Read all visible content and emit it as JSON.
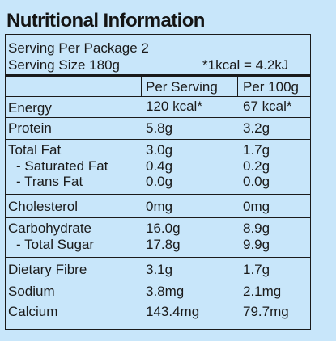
{
  "title": "Nutritional Information",
  "serving_per_package": "Serving Per Package 2",
  "serving_size": "Serving Size 180g",
  "energy_conversion": "*1kcal = 4.2kJ",
  "columns": {
    "per_serving": "Per Serving",
    "per_100g": "Per 100g"
  },
  "rows": [
    {
      "label": "Energy",
      "per_serving": "120 kcal*",
      "per_100g": "67 kcal*"
    },
    {
      "label": "Protein",
      "per_serving": "5.8g",
      "per_100g": "3.2g"
    },
    {
      "label": "Total Fat",
      "per_serving": "3.0g",
      "per_100g": "1.7g"
    },
    {
      "label": "- Saturated Fat",
      "per_serving": "0.4g",
      "per_100g": "0.2g"
    },
    {
      "label": "- Trans Fat",
      "per_serving": "0.0g",
      "per_100g": "0.0g"
    },
    {
      "label": "Cholesterol",
      "per_serving": "0mg",
      "per_100g": "0mg"
    },
    {
      "label": "Carbohydrate",
      "per_serving": "16.0g",
      "per_100g": "8.9g"
    },
    {
      "label": "- Total Sugar",
      "per_serving": "17.8g",
      "per_100g": "9.9g"
    },
    {
      "label": "Dietary Fibre",
      "per_serving": "3.1g",
      "per_100g": "1.7g"
    },
    {
      "label": "Sodium",
      "per_serving": "3.8mg",
      "per_100g": "2.1mg"
    },
    {
      "label": "Calcium",
      "per_serving": "143.4mg",
      "per_100g": "79.7mg"
    }
  ]
}
